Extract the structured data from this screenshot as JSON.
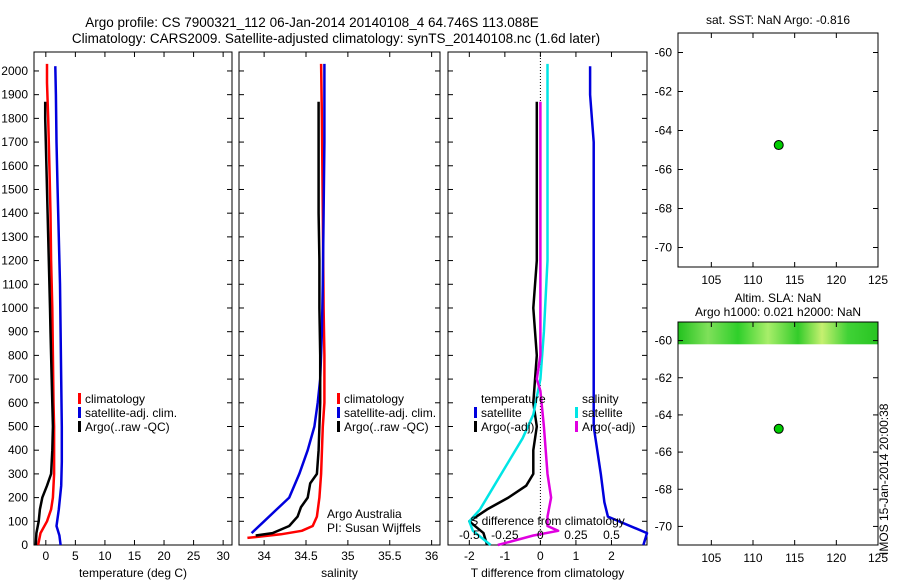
{
  "header": {
    "line1": "Argo profile: CS 7900321_112 06-Jan-2014 20140108_4 64.746S 113.088E",
    "line2": "Climatology: CARS2009. Satellite-adjusted climatology: synTS_20140108.nc (1.6d later)"
  },
  "side_note": "IMOS 15-Jan-2014 20:00:38",
  "colors": {
    "climatology": "#ff0000",
    "satellite": "#0000dd",
    "argo": "#000000",
    "sal_satellite": "#00e5e5",
    "sal_argo": "#e000e0",
    "marker": "#00cc00"
  },
  "chart_data": [
    {
      "id": "temperature",
      "type": "line",
      "xlabel": "temperature (deg C)",
      "xlim": [
        -2,
        31.5
      ],
      "xticks": [
        0,
        5,
        10,
        15,
        20,
        25,
        30
      ],
      "ylim": [
        2080,
        0
      ],
      "yticks": [
        0,
        100,
        200,
        300,
        400,
        500,
        600,
        700,
        800,
        900,
        1000,
        1100,
        1200,
        1300,
        1400,
        1500,
        1600,
        1700,
        1800,
        1900,
        2000
      ],
      "legend": [
        "climatology",
        "satellite-adj. clim.",
        "Argo(..raw -QC)"
      ],
      "series": [
        {
          "name": "climatology",
          "color_key": "climatology",
          "points": [
            [
              -1.3,
              0
            ],
            [
              -0.9,
              50
            ],
            [
              0.2,
              100
            ],
            [
              0.9,
              150
            ],
            [
              1.2,
              200
            ],
            [
              1.3,
              250
            ],
            [
              1.4,
              300
            ],
            [
              1.4,
              400
            ],
            [
              1.4,
              500
            ],
            [
              1.3,
              600
            ],
            [
              1.2,
              800
            ],
            [
              1.1,
              1000
            ],
            [
              0.9,
              1200
            ],
            [
              0.8,
              1400
            ],
            [
              0.6,
              1600
            ],
            [
              0.4,
              1800
            ],
            [
              0.2,
              1950
            ],
            [
              0.2,
              2030
            ]
          ]
        },
        {
          "name": "satellite-adj. clim.",
          "color_key": "satellite",
          "points": [
            [
              2.5,
              0
            ],
            [
              2.3,
              40
            ],
            [
              1.8,
              80
            ],
            [
              2.2,
              150
            ],
            [
              2.6,
              250
            ],
            [
              2.7,
              350
            ],
            [
              2.7,
              500
            ],
            [
              2.6,
              700
            ],
            [
              2.5,
              900
            ],
            [
              2.4,
              1100
            ],
            [
              2.2,
              1300
            ],
            [
              2.0,
              1500
            ],
            [
              1.8,
              1700
            ],
            [
              1.7,
              1900
            ],
            [
              1.6,
              2020
            ]
          ]
        },
        {
          "name": "Argo(..raw -QC)",
          "color_key": "argo",
          "points": [
            [
              -1.7,
              0
            ],
            [
              -1.6,
              50
            ],
            [
              -1.2,
              100
            ],
            [
              -1.0,
              150
            ],
            [
              -0.6,
              200
            ],
            [
              0.2,
              250
            ],
            [
              0.9,
              300
            ],
            [
              1.1,
              400
            ],
            [
              1.2,
              500
            ],
            [
              1.1,
              600
            ],
            [
              1.0,
              700
            ],
            [
              0.9,
              800
            ],
            [
              0.8,
              900
            ],
            [
              0.7,
              1000
            ],
            [
              0.6,
              1100
            ],
            [
              0.5,
              1200
            ],
            [
              0.4,
              1300
            ],
            [
              0.3,
              1400
            ],
            [
              0.2,
              1500
            ],
            [
              0.1,
              1600
            ],
            [
              0.0,
              1700
            ],
            [
              -0.1,
              1800
            ],
            [
              -0.1,
              1870
            ]
          ]
        }
      ]
    },
    {
      "id": "salinity",
      "type": "line",
      "xlabel": "salinity",
      "xlim": [
        33.7,
        36.1
      ],
      "xticks": [
        34,
        34.5,
        35,
        35.5,
        36
      ],
      "xtick_labels": [
        "34",
        "34.5",
        "35",
        "35.5",
        "36"
      ],
      "ylim": [
        2080,
        0
      ],
      "legend": [
        "climatology",
        "satellite-adj. clim.",
        "Argo(..raw -QC)"
      ],
      "annotation": [
        "Argo Australia",
        "PI: Susan Wijffels"
      ],
      "series": [
        {
          "name": "climatology",
          "color_key": "climatology",
          "points": [
            [
              33.8,
              30
            ],
            [
              34.2,
              45
            ],
            [
              34.45,
              60
            ],
            [
              34.58,
              80
            ],
            [
              34.63,
              120
            ],
            [
              34.66,
              200
            ],
            [
              34.68,
              300
            ],
            [
              34.7,
              500
            ],
            [
              34.72,
              600
            ],
            [
              34.72,
              800
            ],
            [
              34.71,
              1000
            ],
            [
              34.7,
              1400
            ],
            [
              34.69,
              1800
            ],
            [
              34.68,
              2030
            ]
          ]
        },
        {
          "name": "satellite-adj. clim.",
          "color_key": "satellite",
          "points": [
            [
              33.85,
              50
            ],
            [
              34.0,
              100
            ],
            [
              34.15,
              150
            ],
            [
              34.3,
              200
            ],
            [
              34.42,
              300
            ],
            [
              34.52,
              400
            ],
            [
              34.6,
              500
            ],
            [
              34.64,
              600
            ],
            [
              34.67,
              700
            ],
            [
              34.69,
              900
            ],
            [
              34.7,
              1100
            ],
            [
              34.71,
              1400
            ],
            [
              34.72,
              1700
            ],
            [
              34.72,
              2030
            ]
          ]
        },
        {
          "name": "Argo(..raw -QC)",
          "color_key": "argo",
          "points": [
            [
              33.9,
              40
            ],
            [
              34.1,
              50
            ],
            [
              34.3,
              80
            ],
            [
              34.4,
              120
            ],
            [
              34.44,
              160
            ],
            [
              34.52,
              200
            ],
            [
              34.55,
              260
            ],
            [
              34.63,
              300
            ],
            [
              34.65,
              400
            ],
            [
              34.66,
              500
            ],
            [
              34.67,
              600
            ],
            [
              34.67,
              800
            ],
            [
              34.66,
              1000
            ],
            [
              34.66,
              1200
            ],
            [
              34.65,
              1400
            ],
            [
              34.65,
              1600
            ],
            [
              34.65,
              1800
            ],
            [
              34.65,
              1870
            ]
          ]
        }
      ]
    },
    {
      "id": "difference",
      "type": "line",
      "xlabel": "T difference from climatology",
      "x2label": "S difference from climatology",
      "xlim": [
        -2.6,
        3.0
      ],
      "xticks": [
        -2,
        -1,
        0,
        1,
        2
      ],
      "x2ticks": [
        -0.5,
        -0.25,
        0,
        0.25,
        0.5
      ],
      "x2tick_labels": [
        "-0.5",
        "-0.25",
        "0",
        "0.25",
        "0.5"
      ],
      "ylim": [
        2080,
        0
      ],
      "legend_temperature": {
        "title": "temperature",
        "items": [
          "satellite",
          "Argo(-adj)"
        ]
      },
      "legend_salinity": {
        "title": "salinity",
        "items": [
          "satellite",
          "Argo(-adj)"
        ]
      },
      "series": [
        {
          "name": "T satellite",
          "color_key": "satellite",
          "points": [
            [
              2.9,
              0
            ],
            [
              3.0,
              50
            ],
            [
              1.9,
              120
            ],
            [
              1.8,
              180
            ],
            [
              1.7,
              300
            ],
            [
              1.5,
              500
            ],
            [
              1.5,
              700
            ],
            [
              1.5,
              1000
            ],
            [
              1.5,
              1300
            ],
            [
              1.5,
              1700
            ],
            [
              1.4,
              1900
            ],
            [
              1.4,
              2020
            ]
          ]
        },
        {
          "name": "T Argo(-adj)",
          "color_key": "argo",
          "points": [
            [
              -1.5,
              0
            ],
            [
              -1.6,
              50
            ],
            [
              -2.0,
              100
            ],
            [
              -1.5,
              150
            ],
            [
              -0.9,
              200
            ],
            [
              -0.4,
              250
            ],
            [
              -0.2,
              300
            ],
            [
              -0.2,
              400
            ],
            [
              -0.1,
              500
            ],
            [
              -0.2,
              600
            ],
            [
              -0.1,
              800
            ],
            [
              -0.2,
              1000
            ],
            [
              -0.1,
              1200
            ],
            [
              -0.1,
              1500
            ],
            [
              -0.1,
              1800
            ],
            [
              -0.1,
              1870
            ]
          ]
        },
        {
          "name": "S satellite",
          "color_key": "sal_satellite",
          "points": [
            [
              -1.4,
              0
            ],
            [
              -1.9,
              60
            ],
            [
              -2.0,
              100
            ],
            [
              -1.7,
              150
            ],
            [
              -1.3,
              250
            ],
            [
              -0.9,
              350
            ],
            [
              -0.5,
              450
            ],
            [
              -0.2,
              550
            ],
            [
              0.0,
              700
            ],
            [
              0.1,
              900
            ],
            [
              0.2,
              1200
            ],
            [
              0.2,
              1500
            ],
            [
              0.2,
              1800
            ],
            [
              0.2,
              2030
            ]
          ]
        },
        {
          "name": "S Argo(-adj)",
          "color_key": "sal_argo",
          "points": [
            [
              -1.2,
              0
            ],
            [
              -0.2,
              40
            ],
            [
              0.5,
              60
            ],
            [
              0.2,
              80
            ],
            [
              0.2,
              120
            ],
            [
              0.3,
              200
            ],
            [
              0.2,
              300
            ],
            [
              0.1,
              500
            ],
            [
              0.0,
              650
            ],
            [
              -0.1,
              700
            ],
            [
              0.0,
              800
            ],
            [
              0.0,
              1000
            ],
            [
              0.0,
              1400
            ],
            [
              0.0,
              1870
            ]
          ]
        }
      ]
    },
    {
      "id": "sst-map",
      "type": "scatter",
      "title": "sat. SST: NaN Argo: -0.816",
      "xlim": [
        101,
        125
      ],
      "xticks": [
        105,
        110,
        115,
        120,
        125
      ],
      "ylim": [
        -71,
        -59
      ],
      "yticks": [
        -60,
        -62,
        -64,
        -66,
        -68,
        -70
      ],
      "points": [
        [
          113.088,
          -64.746
        ]
      ]
    },
    {
      "id": "sla-map",
      "type": "scatter",
      "title": [
        "Altim. SLA: NaN",
        "Argo h1000: 0.021 h2000: NaN"
      ],
      "xlim": [
        101,
        125
      ],
      "xticks": [
        105,
        110,
        115,
        120,
        125
      ],
      "ylim": [
        -71,
        -59
      ],
      "yticks": [
        -60,
        -62,
        -64,
        -66,
        -68,
        -70
      ],
      "band_ylim": [
        -59,
        -60.2
      ],
      "points": [
        [
          113.088,
          -64.746
        ]
      ]
    }
  ]
}
